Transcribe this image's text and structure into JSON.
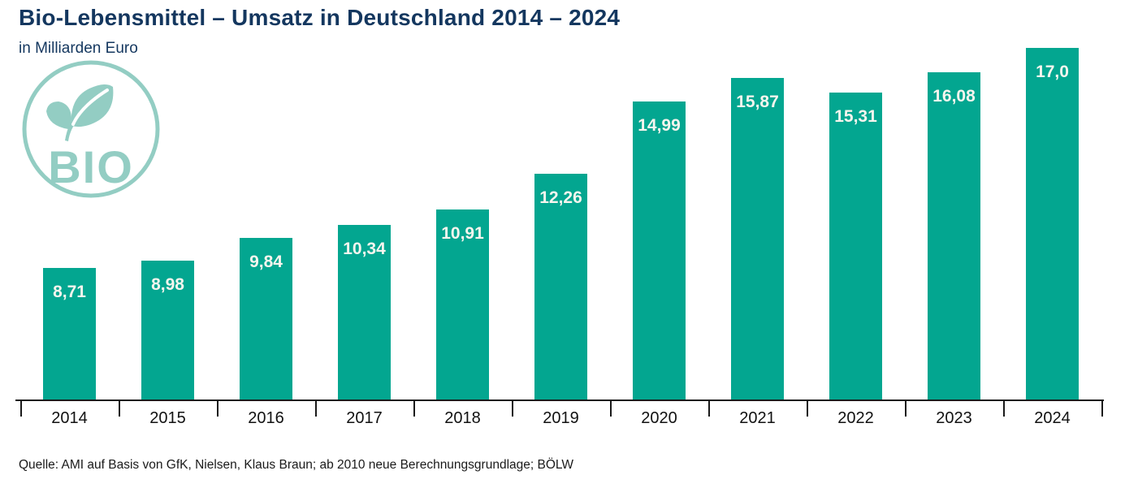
{
  "header": {
    "title": "Bio-Lebensmittel – Umsatz in Deutschland 2014 – 2024",
    "subtitle": "in Milliarden Euro",
    "title_color": "#14375f"
  },
  "logo": {
    "text": "BIO",
    "color": "#93cdc3"
  },
  "chart_data": {
    "type": "bar",
    "title": "Bio-Lebensmittel – Umsatz in Deutschland 2014 – 2024",
    "subtitle": "in Milliarden Euro",
    "unit": "Milliarden Euro",
    "categories": [
      "2014",
      "2015",
      "2016",
      "2017",
      "2018",
      "2019",
      "2020",
      "2021",
      "2022",
      "2023",
      "2024"
    ],
    "values": [
      8.71,
      8.98,
      9.84,
      10.34,
      10.91,
      12.26,
      14.99,
      15.87,
      15.31,
      16.08,
      17.0
    ],
    "value_labels": [
      "8,71",
      "8,98",
      "9,84",
      "10,34",
      "10,91",
      "12,26",
      "14,99",
      "15,87",
      "15,31",
      "16,08",
      "17,0"
    ],
    "bar_color": "#03a690",
    "label_color": "#f8f5ee",
    "ylim": [
      3.74,
      17.18
    ],
    "grid": false,
    "legend": false,
    "axis_color": "#1a1a1a"
  },
  "footer": {
    "source": "Quelle: AMI auf Basis von GfK, Nielsen, Klaus Braun; ab 2010 neue Berechnungsgrundlage; BÖLW"
  }
}
